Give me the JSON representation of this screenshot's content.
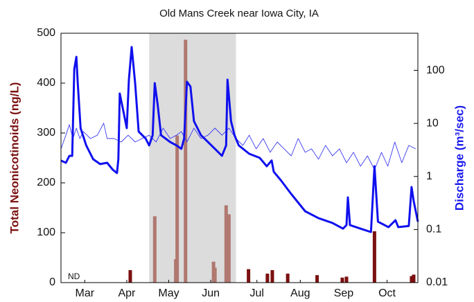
{
  "chart_data": {
    "type": "combo",
    "title": "Old Mans Creek near Iowa City, IA",
    "y_label": "Total Neonicotinoids (ng/L)",
    "y_label_color": "#7b1010",
    "y2_label": "Discharge (m³/sec)",
    "y2_label_color": "#1a1aee",
    "annotation": "ND",
    "xlim": [
      0,
      255
    ],
    "xticks": [
      {
        "value": 17,
        "label": "Mar"
      },
      {
        "value": 47,
        "label": "Apr"
      },
      {
        "value": 77,
        "label": "May"
      },
      {
        "value": 107,
        "label": "Jun"
      },
      {
        "value": 140,
        "label": "Jul"
      },
      {
        "value": 171,
        "label": "Aug"
      },
      {
        "value": 202,
        "label": "Sep"
      },
      {
        "value": 233,
        "label": "Oct"
      }
    ],
    "ylim": [
      0,
      500
    ],
    "yticks": [
      0,
      100,
      200,
      300,
      400,
      500
    ],
    "y2lim": [
      0.01,
      500
    ],
    "y2ticks": [
      0.01,
      0.1,
      1,
      10,
      100
    ],
    "y2_log": true,
    "shaded_x": [
      63,
      125
    ],
    "shade_color": "#dcdcdc",
    "series": [
      {
        "type": "bar",
        "x": [
          49.5,
          67,
          82,
          83,
          89,
          109,
          110,
          118,
          120,
          134,
          147.5,
          151,
          162,
          183,
          201,
          204,
          224,
          250.5,
          252
        ],
        "values": [
          25,
          133,
          47,
          295,
          487,
          42,
          30,
          155,
          137,
          27,
          18,
          25,
          18,
          15,
          10,
          12,
          103,
          13,
          16
        ],
        "colors": [
          "#7b1010",
          "#b07870",
          "#b07870",
          "#b07870",
          "#b07870",
          "#b07870",
          "#b07870",
          "#b07870",
          "#b07870",
          "#7b1010",
          "#7b1010",
          "#7b1010",
          "#7b1010",
          "#7b1010",
          "#7b1010",
          "#7b1010",
          "#7b1010",
          "#7b1010",
          "#7b1010"
        ]
      },
      {
        "type": "line",
        "axis": "y2",
        "color": "#3a3af0",
        "width": 0.9,
        "x": [
          0,
          3.5,
          6,
          8.5,
          11,
          13.5,
          16,
          21,
          26,
          30.5,
          33,
          38,
          43,
          48,
          53,
          58,
          63,
          68,
          73,
          78,
          82.5,
          86,
          90,
          95,
          100,
          105,
          110,
          115,
          120,
          125,
          130,
          134.5,
          139.5,
          144.5,
          149.5,
          154.5,
          159.5,
          164.5,
          169.5,
          174.5,
          179,
          184,
          189,
          194,
          199,
          204,
          209,
          214,
          219,
          224,
          229,
          233.5,
          238.5,
          243.5,
          248.5,
          253.5
        ],
        "values": [
          3.31,
          6.0,
          9.5,
          5.19,
          8.15,
          5.19,
          7.0,
          5.19,
          6.0,
          10.1,
          5.19,
          5.19,
          4.47,
          6.0,
          4.47,
          5.19,
          6.0,
          4.47,
          8.15,
          5.19,
          6.0,
          7.0,
          4.47,
          8.15,
          5.19,
          6.0,
          8.15,
          6.0,
          8.15,
          5.19,
          3.85,
          6.0,
          3.31,
          5.19,
          2.85,
          4.47,
          3.31,
          2.45,
          5.19,
          2.85,
          3.31,
          2.11,
          3.85,
          2.45,
          3.31,
          1.81,
          2.85,
          1.56,
          2.45,
          1.34,
          2.85,
          1.56,
          4.47,
          1.81,
          3.85,
          3.31
        ]
      },
      {
        "type": "line",
        "axis": "y2",
        "color": "#1010ee",
        "width": 3,
        "x": [
          0,
          3.5,
          6,
          8,
          9.5,
          11,
          12,
          14,
          18,
          23,
          28,
          33,
          37,
          40,
          41,
          42,
          44.5,
          47,
          48.5,
          50.5,
          53,
          55.5,
          60.5,
          63,
          65.5,
          67,
          69,
          71.5,
          78,
          82.5,
          86,
          88,
          90,
          92.5,
          95,
          100,
          105,
          110,
          115,
          118,
          119,
          121.5,
          124,
          127,
          134.5,
          142,
          147,
          150.5,
          152,
          157,
          164.5,
          174.5,
          184,
          194,
          201.5,
          204,
          205,
          206.5,
          214,
          221.5,
          224,
          226.5,
          234,
          239,
          241,
          248.5,
          250.5,
          252,
          255
        ],
        "values": [
          1.99,
          1.81,
          2.45,
          2.45,
          105,
          180,
          57.5,
          8.15,
          3.85,
          2.11,
          1.71,
          1.81,
          1.34,
          1.16,
          2.11,
          36.6,
          17.3,
          8.15,
          66.8,
          275,
          57.5,
          7.0,
          5.19,
          3.85,
          6.0,
          57.5,
          23.3,
          6.0,
          4.47,
          3.85,
          3.31,
          5.19,
          61,
          49.5,
          11.0,
          6.0,
          4.47,
          3.31,
          2.45,
          3.85,
          66.8,
          11.0,
          6.0,
          3.85,
          2.68,
          2.24,
          1.56,
          2.0,
          1.23,
          0.855,
          0.469,
          0.221,
          0.164,
          0.133,
          0.104,
          0.121,
          0.403,
          0.121,
          0.104,
          0.0898,
          1.56,
          0.141,
          0.111,
          0.15,
          0.111,
          0.117,
          0.633,
          0.347,
          0.141
        ]
      }
    ]
  }
}
